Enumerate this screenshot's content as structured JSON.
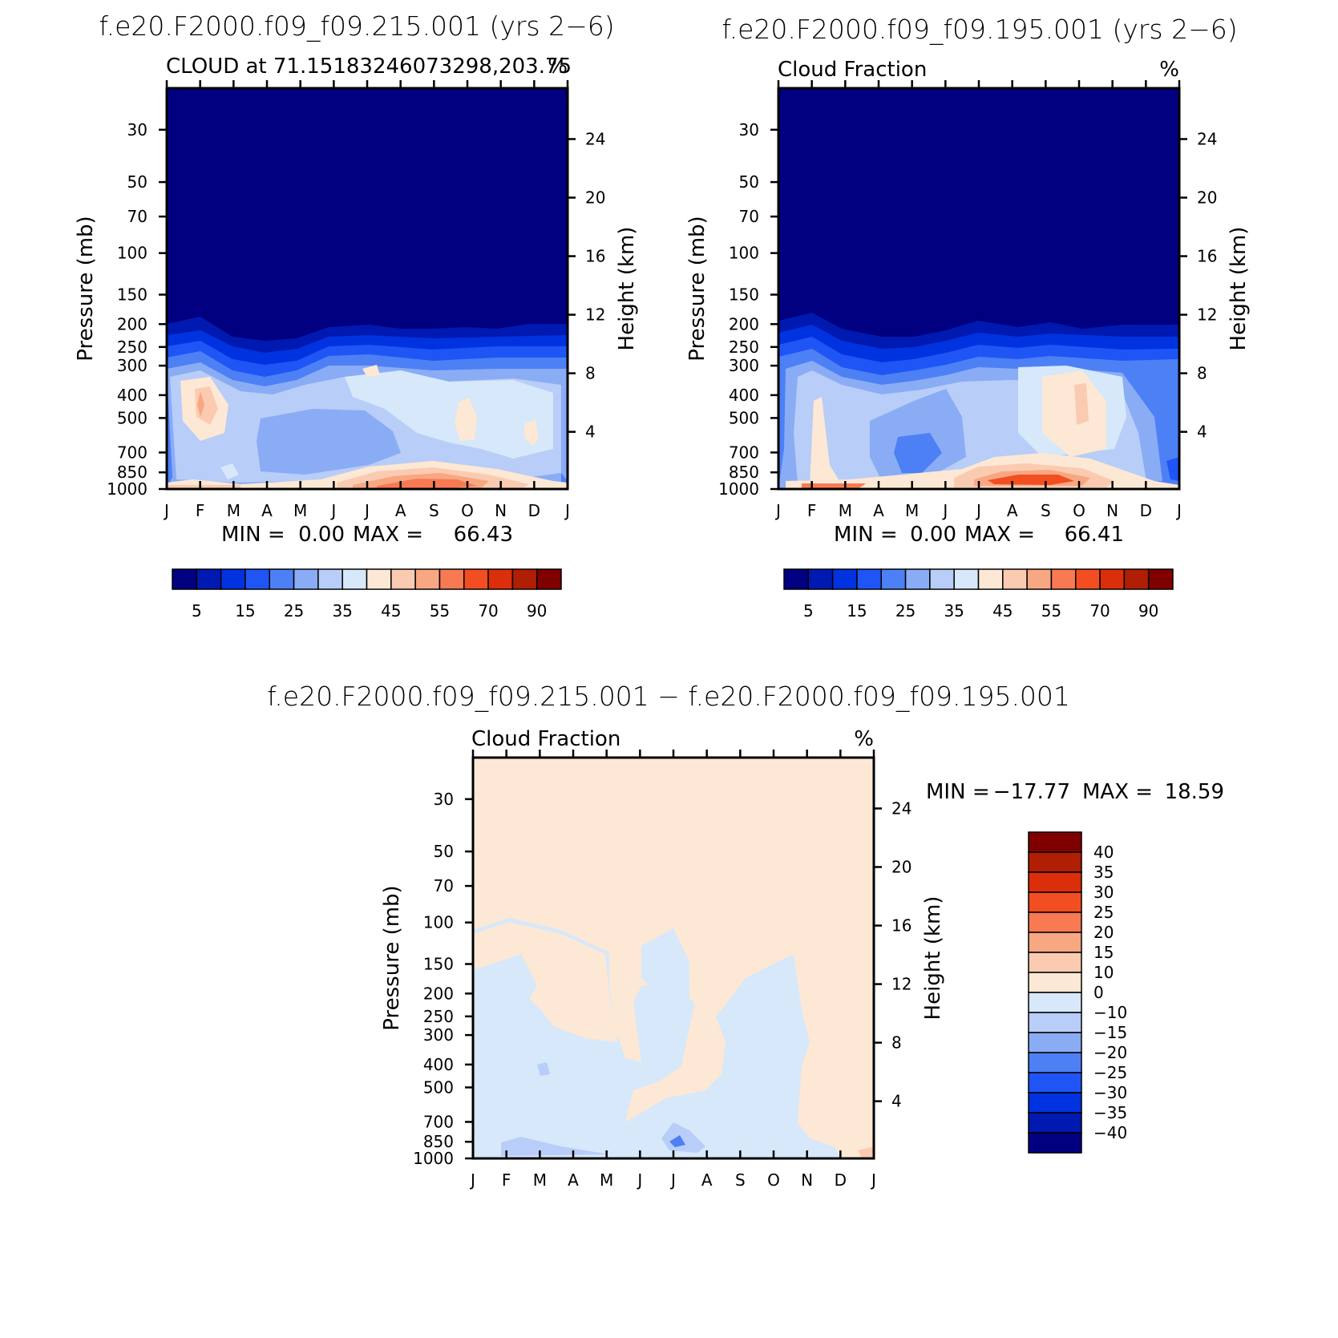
{
  "chart_data": [
    {
      "type": "heatmap",
      "title": "f.e20.F2000.f09_f09.215.001 (yrs 2−6)",
      "left_label": "CLOUD at 71.15183246073298,203.75",
      "right_label": "%",
      "ylabel": "Pressure (mb)",
      "y2label": "Height (km)",
      "x_ticks": [
        "J",
        "F",
        "M",
        "A",
        "M",
        "J",
        "J",
        "A",
        "S",
        "O",
        "N",
        "D",
        "J"
      ],
      "y_ticks": [
        "30",
        "50",
        "70",
        "100",
        "150",
        "200",
        "250",
        "300",
        "400",
        "500",
        "700",
        "850",
        "1000"
      ],
      "y2_ticks": [
        "24",
        "20",
        "16",
        "12",
        "8",
        "4"
      ],
      "stats": {
        "min_label": "MIN =",
        "min": "0.00",
        "max_label": "MAX =",
        "max": "66.43"
      },
      "levels": [
        "5",
        "15",
        "25",
        "35",
        "45",
        "55",
        "70",
        "90"
      ]
    },
    {
      "type": "heatmap",
      "title": "f.e20.F2000.f09_f09.195.001 (yrs 2−6)",
      "left_label": "Cloud Fraction",
      "right_label": "%",
      "ylabel": "Pressure (mb)",
      "y2label": "Height (km)",
      "x_ticks": [
        "J",
        "F",
        "M",
        "A",
        "M",
        "J",
        "J",
        "A",
        "S",
        "O",
        "N",
        "D",
        "J"
      ],
      "y_ticks": [
        "30",
        "50",
        "70",
        "100",
        "150",
        "200",
        "250",
        "300",
        "400",
        "500",
        "700",
        "850",
        "1000"
      ],
      "y2_ticks": [
        "24",
        "20",
        "16",
        "12",
        "8",
        "4"
      ],
      "stats": {
        "min_label": "MIN =",
        "min": "0.00",
        "max_label": "MAX =",
        "max": "66.41"
      },
      "levels": [
        "5",
        "15",
        "25",
        "35",
        "45",
        "55",
        "70",
        "90"
      ]
    },
    {
      "type": "heatmap",
      "title": "f.e20.F2000.f09_f09.215.001 − f.e20.F2000.f09_f09.195.001",
      "left_label": "Cloud Fraction",
      "right_label": "%",
      "ylabel": "Pressure (mb)",
      "y2label": "Height (km)",
      "x_ticks": [
        "J",
        "F",
        "M",
        "A",
        "M",
        "J",
        "J",
        "A",
        "S",
        "O",
        "N",
        "D",
        "J"
      ],
      "y_ticks": [
        "30",
        "50",
        "70",
        "100",
        "150",
        "200",
        "250",
        "300",
        "400",
        "500",
        "700",
        "850",
        "1000"
      ],
      "y2_ticks": [
        "24",
        "20",
        "16",
        "12",
        "8",
        "4"
      ],
      "stats": {
        "min_label": "MIN =",
        "min": "−17.77",
        "max_label": "MAX =",
        "max": "18.59"
      },
      "levels": [
        "40",
        "35",
        "30",
        "25",
        "20",
        "15",
        "10",
        "0",
        "−10",
        "−15",
        "−20",
        "−25",
        "−30",
        "−35",
        "−40"
      ]
    }
  ],
  "colors": {
    "abs_scale": [
      "#000080",
      "#0019b0",
      "#0032e0",
      "#1f55f5",
      "#4d80f5",
      "#8aacf5",
      "#b8cdf7",
      "#d6e8fa",
      "#fde8d5",
      "#fbcbb1",
      "#f8a783",
      "#f87a53",
      "#f24e22",
      "#db2e0a",
      "#b01e06",
      "#800000"
    ],
    "diff_scale": [
      "#800000",
      "#b01e06",
      "#db2e0a",
      "#f24e22",
      "#f87a53",
      "#f8a783",
      "#fbcbb1",
      "#fde8d5",
      "#d6e8fa",
      "#b8cdf7",
      "#8aacf5",
      "#4d80f5",
      "#1f55f5",
      "#0032e0",
      "#0019b0",
      "#000080"
    ]
  }
}
